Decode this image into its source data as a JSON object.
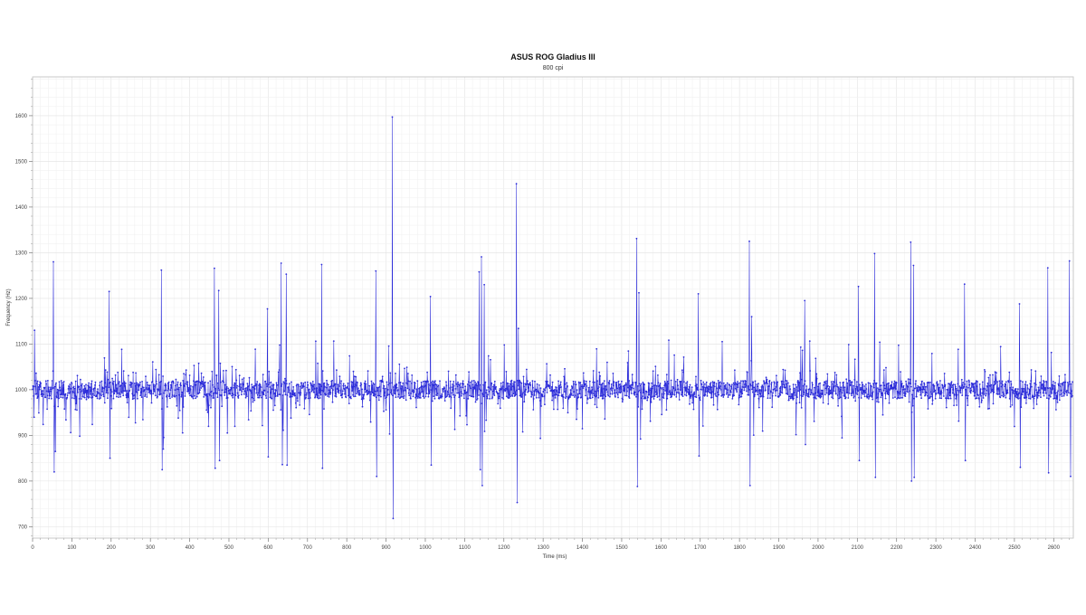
{
  "chart_data": {
    "type": "line",
    "title": "ASUS ROG Gladius III",
    "subtitle": "800 cpi",
    "xlabel": "Time (ms)",
    "ylabel": "Frequency (Hz)",
    "xlim": [
      0,
      2650
    ],
    "ylim": [
      675,
      1685
    ],
    "x_ticks": [
      0,
      100,
      200,
      300,
      400,
      500,
      600,
      700,
      800,
      900,
      1000,
      1100,
      1200,
      1300,
      1400,
      1500,
      1600,
      1700,
      1800,
      1900,
      2000,
      2100,
      2200,
      2300,
      2400,
      2500,
      2600
    ],
    "y_ticks": [
      700,
      800,
      900,
      1000,
      1100,
      1200,
      1300,
      1400,
      1500,
      1600
    ],
    "grid": true,
    "series_color": "#2b2bd9",
    "series": [
      {
        "notable_points": [
          [
            5,
            1130
          ],
          [
            53,
            1280
          ],
          [
            55,
            820
          ],
          [
            58,
            865
          ],
          [
            195,
            1215
          ],
          [
            197,
            850
          ],
          [
            328,
            1262
          ],
          [
            330,
            825
          ],
          [
            333,
            870
          ],
          [
            463,
            1266
          ],
          [
            465,
            828
          ],
          [
            474,
            1217
          ],
          [
            476,
            845
          ],
          [
            598,
            1177
          ],
          [
            600,
            853
          ],
          [
            633,
            1277
          ],
          [
            636,
            836
          ],
          [
            646,
            1253
          ],
          [
            648,
            835
          ],
          [
            736,
            1274
          ],
          [
            738,
            828
          ],
          [
            874,
            1260
          ],
          [
            876,
            810
          ],
          [
            916,
            1597
          ],
          [
            918,
            718
          ],
          [
            1013,
            1204
          ],
          [
            1015,
            835
          ],
          [
            1137,
            1258
          ],
          [
            1140,
            825
          ],
          [
            1143,
            1291
          ],
          [
            1145,
            790
          ],
          [
            1150,
            1230
          ],
          [
            1232,
            1451
          ],
          [
            1234,
            753
          ],
          [
            1237,
            1134
          ],
          [
            1538,
            1331
          ],
          [
            1540,
            788
          ],
          [
            1544,
            1212
          ],
          [
            1548,
            892
          ],
          [
            1695,
            1210
          ],
          [
            1697,
            855
          ],
          [
            1825,
            1325
          ],
          [
            1827,
            790
          ],
          [
            1831,
            1160
          ],
          [
            1966,
            1195
          ],
          [
            1968,
            880
          ],
          [
            2103,
            1226
          ],
          [
            2105,
            845
          ],
          [
            2144,
            1298
          ],
          [
            2146,
            808
          ],
          [
            2236,
            1323
          ],
          [
            2238,
            800
          ],
          [
            2243,
            1272
          ],
          [
            2245,
            808
          ],
          [
            2373,
            1231
          ],
          [
            2375,
            845
          ],
          [
            2513,
            1188
          ],
          [
            2515,
            830
          ],
          [
            2585,
            1267
          ],
          [
            2587,
            818
          ],
          [
            2640,
            1282
          ],
          [
            2643,
            810
          ]
        ]
      }
    ],
    "baseline": 1000
  }
}
